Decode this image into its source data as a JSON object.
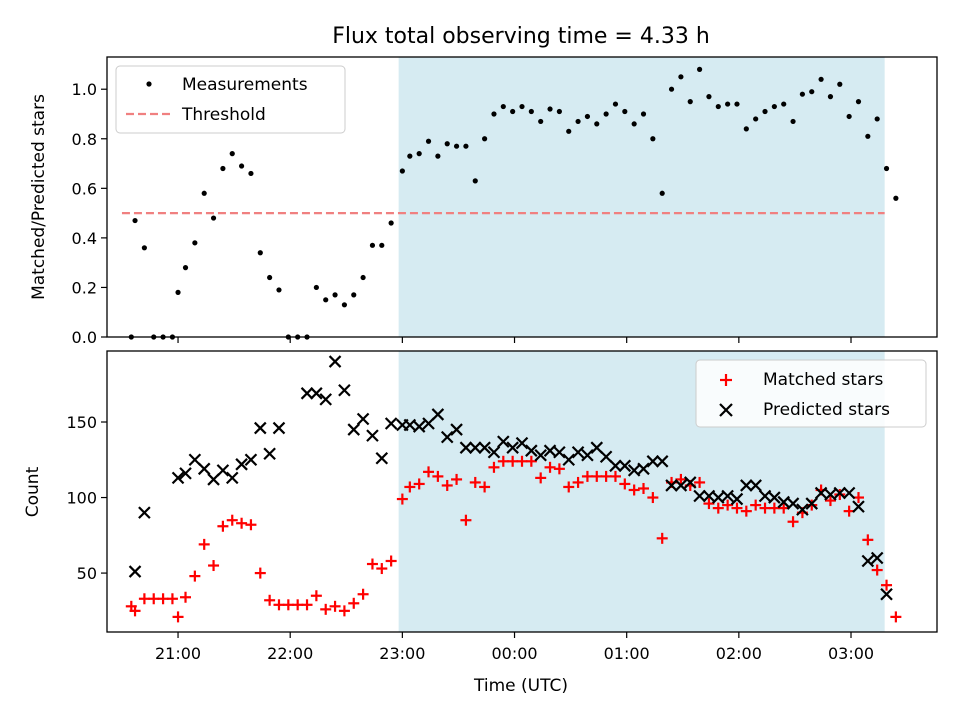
{
  "chart_data": [
    {
      "type": "scatter",
      "title": "Flux total observing time = 4.33 h",
      "ylabel": "Matched/Predicted stars",
      "xlabel": "",
      "ylim": [
        0,
        1.13
      ],
      "yticks": [
        "0.0",
        "0.2",
        "0.4",
        "0.6",
        "0.8",
        "1.0"
      ],
      "x_axis_kind": "time",
      "x_range": [
        "20:22",
        "03:46"
      ],
      "shaded_interval": [
        "22:58",
        "03:18"
      ],
      "shade_color": "#add8e6",
      "legend_position": "upper left",
      "threshold": {
        "name": "Threshold",
        "value": 0.5,
        "x_range": [
          "20:30",
          "03:18"
        ],
        "color": "#f08080",
        "style": "dashed"
      },
      "series": [
        {
          "name": "Measurements",
          "color": "#000000",
          "marker": "dot",
          "points": [
            [
              "20:35",
              0.0
            ],
            [
              "20:37",
              0.47
            ],
            [
              "20:42",
              0.36
            ],
            [
              "20:47",
              0.0
            ],
            [
              "20:52",
              0.0
            ],
            [
              "20:57",
              0.0
            ],
            [
              "21:00",
              0.18
            ],
            [
              "21:04",
              0.28
            ],
            [
              "21:09",
              0.38
            ],
            [
              "21:14",
              0.58
            ],
            [
              "21:19",
              0.48
            ],
            [
              "21:24",
              0.68
            ],
            [
              "21:29",
              0.74
            ],
            [
              "21:34",
              0.69
            ],
            [
              "21:39",
              0.66
            ],
            [
              "21:44",
              0.34
            ],
            [
              "21:49",
              0.24
            ],
            [
              "21:54",
              0.19
            ],
            [
              "21:59",
              0.0
            ],
            [
              "22:04",
              0.0
            ],
            [
              "22:09",
              0.0
            ],
            [
              "22:14",
              0.2
            ],
            [
              "22:19",
              0.15
            ],
            [
              "22:24",
              0.17
            ],
            [
              "22:29",
              0.13
            ],
            [
              "22:34",
              0.17
            ],
            [
              "22:39",
              0.24
            ],
            [
              "22:44",
              0.37
            ],
            [
              "22:49",
              0.37
            ],
            [
              "22:54",
              0.46
            ],
            [
              "23:00",
              0.67
            ],
            [
              "23:04",
              0.73
            ],
            [
              "23:09",
              0.74
            ],
            [
              "23:14",
              0.79
            ],
            [
              "23:19",
              0.73
            ],
            [
              "23:24",
              0.78
            ],
            [
              "23:29",
              0.77
            ],
            [
              "23:34",
              0.77
            ],
            [
              "23:39",
              0.63
            ],
            [
              "23:44",
              0.8
            ],
            [
              "23:49",
              0.9
            ],
            [
              "23:54",
              0.93
            ],
            [
              "23:59",
              0.91
            ],
            [
              "00:04",
              0.93
            ],
            [
              "00:09",
              0.91
            ],
            [
              "00:14",
              0.87
            ],
            [
              "00:19",
              0.92
            ],
            [
              "00:24",
              0.91
            ],
            [
              "00:29",
              0.83
            ],
            [
              "00:34",
              0.87
            ],
            [
              "00:39",
              0.89
            ],
            [
              "00:44",
              0.86
            ],
            [
              "00:49",
              0.9
            ],
            [
              "00:54",
              0.94
            ],
            [
              "00:59",
              0.91
            ],
            [
              "01:04",
              0.86
            ],
            [
              "01:09",
              0.9
            ],
            [
              "01:14",
              0.8
            ],
            [
              "01:19",
              0.58
            ],
            [
              "01:24",
              1.0
            ],
            [
              "01:29",
              1.05
            ],
            [
              "01:34",
              0.95
            ],
            [
              "01:39",
              1.08
            ],
            [
              "01:44",
              0.97
            ],
            [
              "01:49",
              0.93
            ],
            [
              "01:54",
              0.94
            ],
            [
              "01:59",
              0.94
            ],
            [
              "02:04",
              0.84
            ],
            [
              "02:09",
              0.88
            ],
            [
              "02:14",
              0.91
            ],
            [
              "02:19",
              0.93
            ],
            [
              "02:24",
              0.94
            ],
            [
              "02:29",
              0.87
            ],
            [
              "02:34",
              0.98
            ],
            [
              "02:39",
              0.99
            ],
            [
              "02:44",
              1.04
            ],
            [
              "02:49",
              0.97
            ],
            [
              "02:54",
              1.02
            ],
            [
              "02:59",
              0.89
            ],
            [
              "03:04",
              0.95
            ],
            [
              "03:09",
              0.81
            ],
            [
              "03:14",
              0.88
            ],
            [
              "03:19",
              0.68
            ],
            [
              "03:24",
              0.56
            ]
          ]
        }
      ]
    },
    {
      "type": "scatter",
      "title": "",
      "ylabel": "Count",
      "xlabel": "Time (UTC)",
      "ylim": [
        11,
        197
      ],
      "yticks": [
        "50",
        "100",
        "150"
      ],
      "xticks": [
        "21:00",
        "22:00",
        "23:00",
        "00:00",
        "01:00",
        "02:00",
        "03:00"
      ],
      "x_axis_kind": "time",
      "x_range": [
        "20:22",
        "03:46"
      ],
      "shaded_interval": [
        "22:58",
        "03:18"
      ],
      "shade_color": "#add8e6",
      "legend_position": "upper right",
      "series": [
        {
          "name": "Matched stars",
          "color": "#ff0000",
          "marker": "plus",
          "points": [
            [
              "20:35",
              28
            ],
            [
              "20:37",
              25
            ],
            [
              "20:42",
              33
            ],
            [
              "20:47",
              33
            ],
            [
              "20:52",
              33
            ],
            [
              "20:57",
              33
            ],
            [
              "21:00",
              21
            ],
            [
              "21:04",
              34
            ],
            [
              "21:09",
              48
            ],
            [
              "21:14",
              69
            ],
            [
              "21:19",
              55
            ],
            [
              "21:24",
              81
            ],
            [
              "21:29",
              85
            ],
            [
              "21:34",
              83
            ],
            [
              "21:39",
              82
            ],
            [
              "21:44",
              50
            ],
            [
              "21:49",
              32
            ],
            [
              "21:54",
              29
            ],
            [
              "21:59",
              29
            ],
            [
              "22:04",
              29
            ],
            [
              "22:09",
              29
            ],
            [
              "22:14",
              35
            ],
            [
              "22:19",
              26
            ],
            [
              "22:24",
              28
            ],
            [
              "22:29",
              25
            ],
            [
              "22:34",
              30
            ],
            [
              "22:39",
              36
            ],
            [
              "22:44",
              56
            ],
            [
              "22:49",
              53
            ],
            [
              "22:54",
              58
            ],
            [
              "23:00",
              99
            ],
            [
              "23:04",
              107
            ],
            [
              "23:09",
              109
            ],
            [
              "23:14",
              117
            ],
            [
              "23:19",
              114
            ],
            [
              "23:24",
              108
            ],
            [
              "23:29",
              112
            ],
            [
              "23:34",
              85
            ],
            [
              "23:39",
              110
            ],
            [
              "23:44",
              107
            ],
            [
              "23:49",
              120
            ],
            [
              "23:54",
              124
            ],
            [
              "23:59",
              124
            ],
            [
              "00:04",
              124
            ],
            [
              "00:09",
              124
            ],
            [
              "00:14",
              113
            ],
            [
              "00:19",
              120
            ],
            [
              "00:24",
              119
            ],
            [
              "00:29",
              107
            ],
            [
              "00:34",
              110
            ],
            [
              "00:39",
              114
            ],
            [
              "00:44",
              114
            ],
            [
              "00:49",
              114
            ],
            [
              "00:54",
              114
            ],
            [
              "00:59",
              109
            ],
            [
              "01:04",
              105
            ],
            [
              "01:09",
              106
            ],
            [
              "01:14",
              100
            ],
            [
              "01:19",
              73
            ],
            [
              "01:24",
              110
            ],
            [
              "01:29",
              112
            ],
            [
              "01:34",
              108
            ],
            [
              "01:39",
              110
            ],
            [
              "01:44",
              96
            ],
            [
              "01:49",
              93
            ],
            [
              "01:54",
              95
            ],
            [
              "01:59",
              93
            ],
            [
              "02:04",
              91
            ],
            [
              "02:09",
              95
            ],
            [
              "02:14",
              93
            ],
            [
              "02:19",
              93
            ],
            [
              "02:24",
              93
            ],
            [
              "02:29",
              84
            ],
            [
              "02:34",
              90
            ],
            [
              "02:39",
              95
            ],
            [
              "02:44",
              105
            ],
            [
              "02:49",
              98
            ],
            [
              "02:54",
              102
            ],
            [
              "02:59",
              91
            ],
            [
              "03:04",
              100
            ],
            [
              "03:09",
              72
            ],
            [
              "03:14",
              52
            ],
            [
              "03:19",
              42
            ],
            [
              "03:24",
              21
            ]
          ]
        },
        {
          "name": "Predicted stars",
          "color": "#000000",
          "marker": "x",
          "points": [
            [
              "20:37",
              51
            ],
            [
              "20:42",
              90
            ],
            [
              "21:00",
              113
            ],
            [
              "21:04",
              116
            ],
            [
              "21:09",
              125
            ],
            [
              "21:14",
              119
            ],
            [
              "21:19",
              112
            ],
            [
              "21:24",
              118
            ],
            [
              "21:29",
              113
            ],
            [
              "21:34",
              122
            ],
            [
              "21:39",
              125
            ],
            [
              "21:44",
              146
            ],
            [
              "21:49",
              129
            ],
            [
              "21:54",
              146
            ],
            [
              "22:09",
              169
            ],
            [
              "22:14",
              169
            ],
            [
              "22:19",
              165
            ],
            [
              "22:24",
              190
            ],
            [
              "22:29",
              171
            ],
            [
              "22:34",
              145
            ],
            [
              "22:39",
              152
            ],
            [
              "22:44",
              141
            ],
            [
              "22:49",
              126
            ],
            [
              "22:54",
              149
            ],
            [
              "23:00",
              148
            ],
            [
              "23:04",
              148
            ],
            [
              "23:09",
              147
            ],
            [
              "23:14",
              149
            ],
            [
              "23:19",
              155
            ],
            [
              "23:24",
              140
            ],
            [
              "23:29",
              145
            ],
            [
              "23:34",
              133
            ],
            [
              "23:39",
              133
            ],
            [
              "23:44",
              133
            ],
            [
              "23:49",
              130
            ],
            [
              "23:54",
              137
            ],
            [
              "23:59",
              133
            ],
            [
              "00:04",
              136
            ],
            [
              "00:09",
              131
            ],
            [
              "00:14",
              128
            ],
            [
              "00:19",
              131
            ],
            [
              "00:24",
              130
            ],
            [
              "00:29",
              125
            ],
            [
              "00:34",
              130
            ],
            [
              "00:39",
              128
            ],
            [
              "00:44",
              133
            ],
            [
              "00:49",
              127
            ],
            [
              "00:54",
              121
            ],
            [
              "00:59",
              121
            ],
            [
              "01:04",
              118
            ],
            [
              "01:09",
              119
            ],
            [
              "01:14",
              124
            ],
            [
              "01:19",
              124
            ],
            [
              "01:24",
              108
            ],
            [
              "01:29",
              108
            ],
            [
              "01:34",
              110
            ],
            [
              "01:39",
              101
            ],
            [
              "01:44",
              101
            ],
            [
              "01:49",
              100
            ],
            [
              "01:54",
              101
            ],
            [
              "01:59",
              99
            ],
            [
              "02:04",
              108
            ],
            [
              "02:09",
              108
            ],
            [
              "02:14",
              101
            ],
            [
              "02:19",
              100
            ],
            [
              "02:24",
              97
            ],
            [
              "02:29",
              96
            ],
            [
              "02:34",
              92
            ],
            [
              "02:39",
              96
            ],
            [
              "02:44",
              103
            ],
            [
              "02:49",
              102
            ],
            [
              "02:54",
              103
            ],
            [
              "02:59",
              103
            ],
            [
              "03:04",
              94
            ],
            [
              "03:09",
              58
            ],
            [
              "03:14",
              60
            ],
            [
              "03:19",
              36
            ]
          ]
        }
      ]
    }
  ]
}
